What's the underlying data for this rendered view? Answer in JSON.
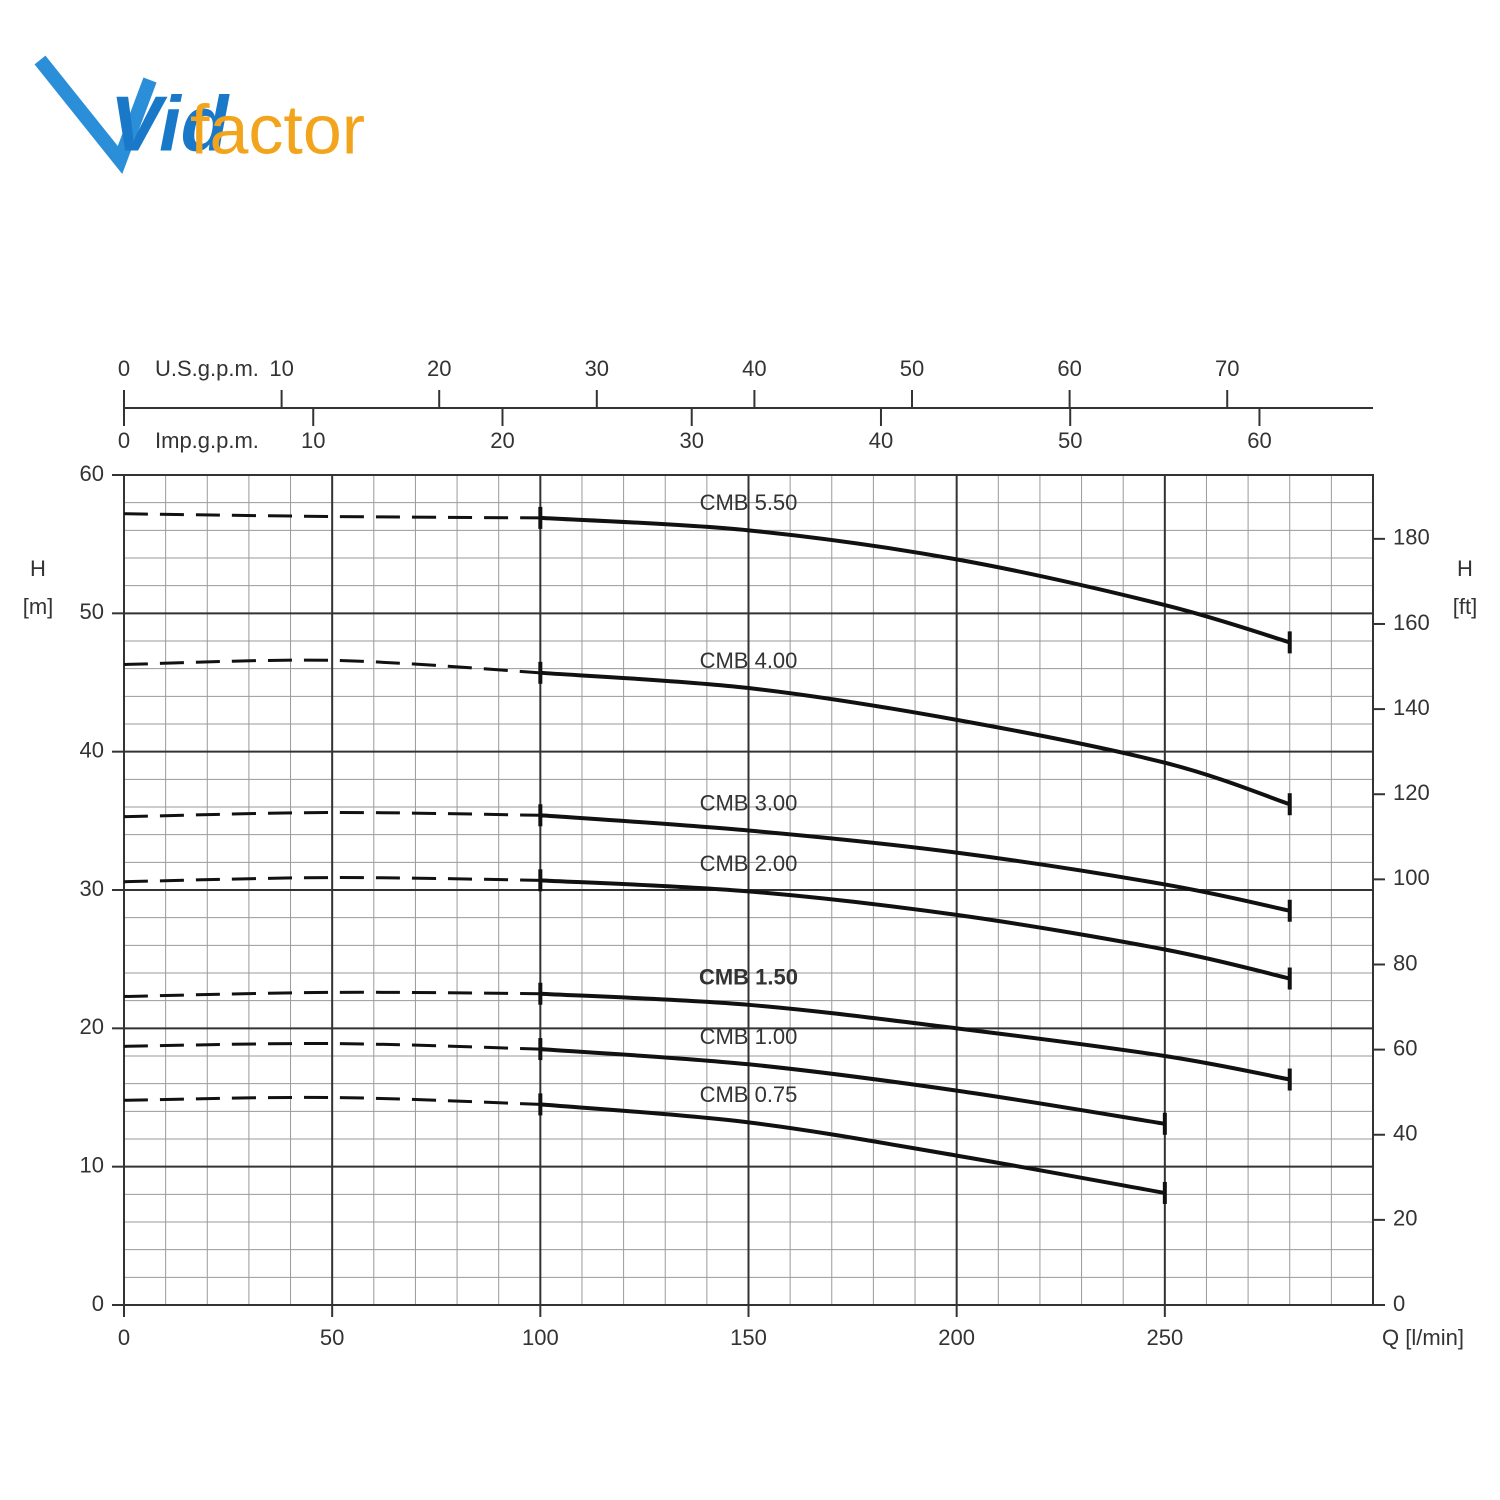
{
  "logo": [
    "Vid",
    "factor"
  ],
  "chart_data": {
    "type": "line",
    "xlabel": "Q [l/min]",
    "ylabel": [
      "H",
      "[m]"
    ],
    "y2label": [
      "H",
      "[ft]"
    ],
    "xlim": [
      0,
      300
    ],
    "xticks": [
      0,
      50,
      100,
      150,
      200,
      250
    ],
    "ylim": [
      0,
      60
    ],
    "yticks": [
      0,
      10,
      20,
      30,
      40,
      50,
      60
    ],
    "y2lim": [
      0,
      195
    ],
    "y2ticks": [
      0,
      20,
      40,
      60,
      80,
      100,
      120,
      140,
      160,
      180
    ],
    "grid": true,
    "minor_grid": {
      "x": 10,
      "y": 2
    },
    "dashed_below": 100,
    "top_axes": [
      {
        "label": "U.S.g.p.m.",
        "lim": [
          0,
          79.25
        ],
        "ticks": [
          0,
          10,
          20,
          30,
          40,
          50,
          60,
          70
        ]
      },
      {
        "label": "Imp.g.p.m.",
        "lim": [
          0,
          66
        ],
        "ticks": [
          0,
          10,
          20,
          30,
          40,
          50,
          60
        ]
      }
    ],
    "series": [
      {
        "name": "CMB 5.50",
        "color": "#111111",
        "label_color": "#333333",
        "x": [
          0,
          50,
          100,
          150,
          200,
          250,
          280
        ],
        "values": [
          57.2,
          57.0,
          56.9,
          56.0,
          53.9,
          50.6,
          47.9
        ]
      },
      {
        "name": "CMB 4.00",
        "color": "#111111",
        "label_color": "#333333",
        "x": [
          0,
          50,
          100,
          150,
          200,
          250,
          280
        ],
        "values": [
          46.3,
          46.6,
          45.7,
          44.6,
          42.3,
          39.2,
          36.2
        ]
      },
      {
        "name": "CMB 3.00",
        "color": "#111111",
        "label_color": "#333333",
        "x": [
          0,
          50,
          100,
          150,
          200,
          250,
          280
        ],
        "values": [
          35.3,
          35.6,
          35.4,
          34.3,
          32.7,
          30.4,
          28.5
        ]
      },
      {
        "name": "CMB 2.00",
        "color": "#111111",
        "label_color": "#333333",
        "x": [
          0,
          50,
          100,
          150,
          200,
          250,
          280
        ],
        "values": [
          30.6,
          30.9,
          30.7,
          29.9,
          28.2,
          25.7,
          23.6
        ]
      },
      {
        "name": "CMB 1.50",
        "color": "#111111",
        "label_color": "#2aa3d8",
        "x": [
          0,
          50,
          100,
          150,
          200,
          250,
          280
        ],
        "values": [
          22.3,
          22.6,
          22.5,
          21.7,
          20.0,
          18.0,
          16.3
        ]
      },
      {
        "name": "CMB 1.00",
        "color": "#111111",
        "label_color": "#333333",
        "x": [
          0,
          50,
          100,
          150,
          200,
          250
        ],
        "values": [
          18.7,
          18.9,
          18.5,
          17.4,
          15.5,
          13.1
        ]
      },
      {
        "name": "CMB 0.75",
        "color": "#111111",
        "label_color": "#333333",
        "x": [
          0,
          50,
          100,
          150,
          200,
          250
        ],
        "values": [
          14.8,
          15.0,
          14.5,
          13.2,
          10.8,
          8.1
        ]
      }
    ]
  }
}
